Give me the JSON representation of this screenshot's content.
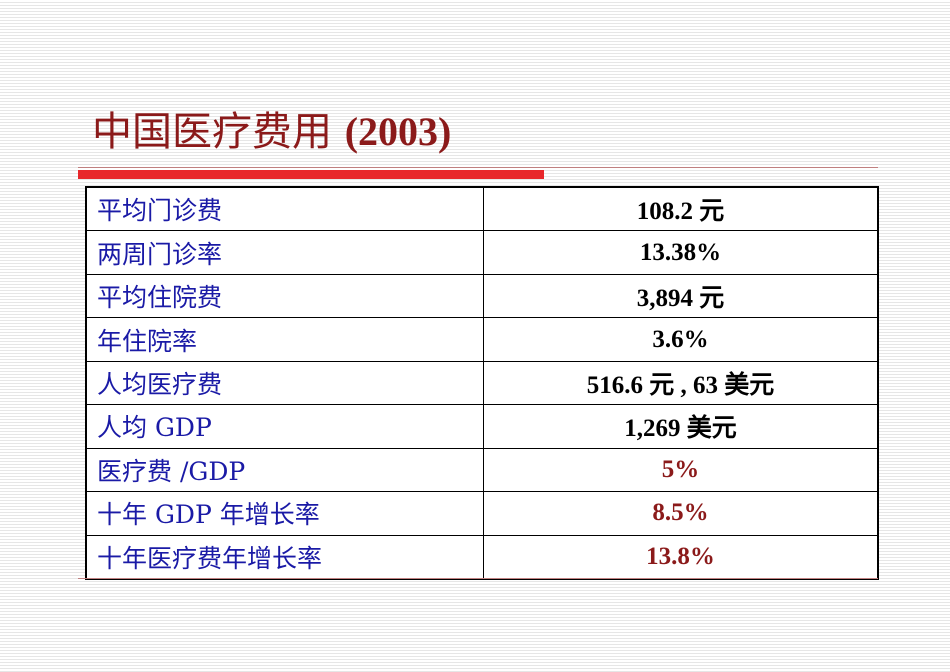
{
  "title": {
    "text": "中国医疗费用",
    "year": "(2003)"
  },
  "table": {
    "rows": [
      {
        "label": "平均门诊费",
        "value": "108.2 元"
      },
      {
        "label": "两周门诊率",
        "value": "13.38%"
      },
      {
        "label": "平均住院费",
        "value": "3,894 元"
      },
      {
        "label": "年住院率",
        "value": "3.6%"
      },
      {
        "label": "人均医疗费",
        "value": "516.6 元 , 63 美元"
      },
      {
        "label": "人均 GDP",
        "value": "1,269 美元"
      },
      {
        "label": "医疗费 /GDP",
        "value": "5%"
      },
      {
        "label": "十年 GDP 年增长率",
        "value": "8.5%"
      },
      {
        "label": "十年医疗费年增长率",
        "value": "13.8%"
      }
    ]
  },
  "colors": {
    "title": "#8b1a1a",
    "label_text": "#1a1aa6",
    "highlight_value": "#8b1a1a",
    "accent_bar": "#e8272b"
  }
}
